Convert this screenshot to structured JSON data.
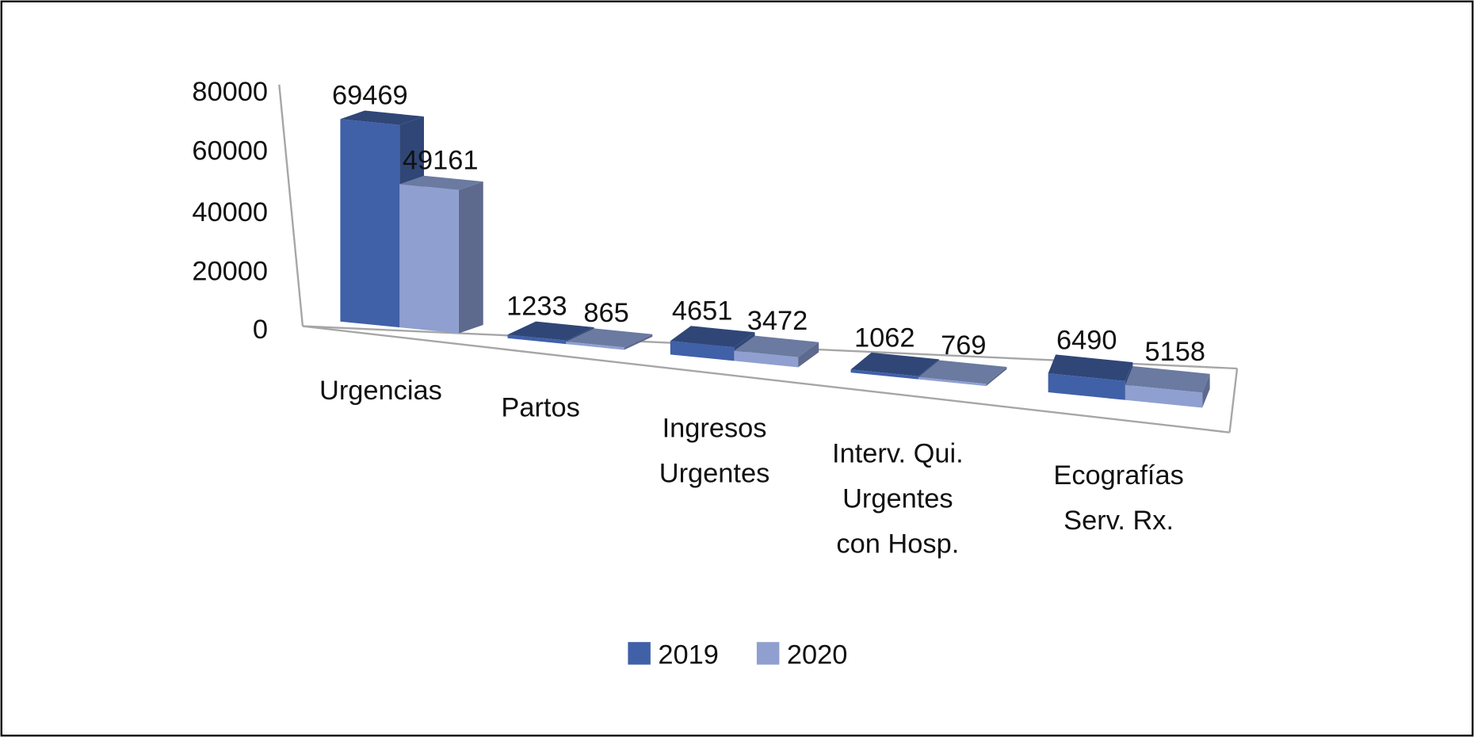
{
  "chart_data": {
    "type": "bar",
    "title": "",
    "xlabel": "",
    "ylabel": "",
    "ylim": [
      0,
      80000
    ],
    "y_ticks": [
      "80000",
      "60000",
      "40000",
      "20000",
      "0"
    ],
    "categories": [
      [
        "Urgencias"
      ],
      [
        "Partos"
      ],
      [
        "Ingresos",
        "Urgentes"
      ],
      [
        "Interv. Qui.",
        "Urgentes",
        "con Hosp."
      ],
      [
        "Ecografías",
        "Serv. Rx."
      ]
    ],
    "series": [
      {
        "name": "2019",
        "color": "#4060a8",
        "values": [
          69469,
          1233,
          4651,
          1062,
          6490
        ]
      },
      {
        "name": "2020",
        "color": "#8f9fd0",
        "values": [
          49161,
          865,
          3472,
          769,
          5158
        ]
      }
    ],
    "legend_position": "bottom",
    "style": "3d-clustered-column"
  }
}
